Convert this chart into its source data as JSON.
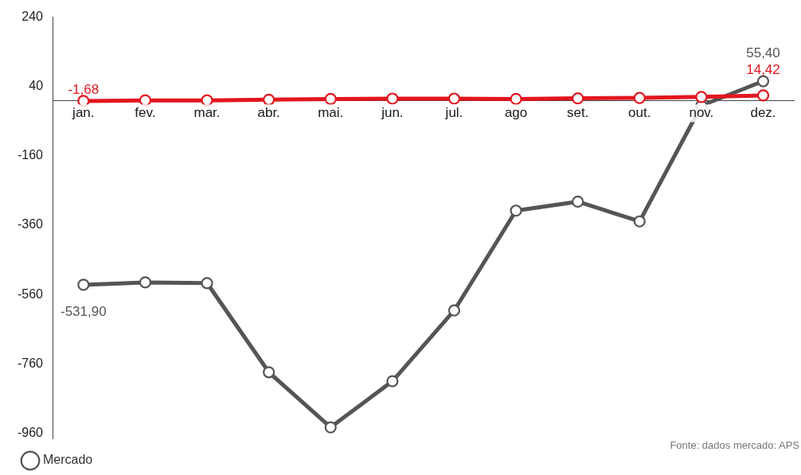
{
  "chart_data": {
    "type": "line",
    "categories": [
      "jan.",
      "fev.",
      "mar.",
      "abr.",
      "mai.",
      "jun.",
      "jul.",
      "ago",
      "set.",
      "out.",
      "nov.",
      "dez."
    ],
    "series": [
      {
        "color": "#e3161f",
        "values": [
          -1.68,
          0,
          0,
          2,
          4,
          5,
          5,
          4,
          6,
          7,
          10,
          14.42
        ],
        "value_labels": [
          "-1,68",
          null,
          null,
          null,
          null,
          null,
          null,
          null,
          null,
          null,
          null,
          "14,42"
        ]
      },
      {
        "name": "Mercado",
        "color": "#555555",
        "values": [
          -531.9,
          -525,
          -527,
          -784,
          -943,
          -810,
          -606,
          -318,
          -292,
          -349,
          -15,
          55.4
        ],
        "value_labels": [
          "-531,90",
          null,
          null,
          null,
          null,
          null,
          null,
          null,
          null,
          null,
          null,
          "55,40"
        ]
      }
    ],
    "ylim": [
      -975,
      240
    ],
    "yticks": [
      240,
      40,
      -160,
      -360,
      -560,
      -760,
      -960
    ],
    "grid": false,
    "legend": "bottom left",
    "marker": "circle",
    "line_style": "solid",
    "annotations": [
      "Fonte: dados mercado: APS"
    ]
  }
}
